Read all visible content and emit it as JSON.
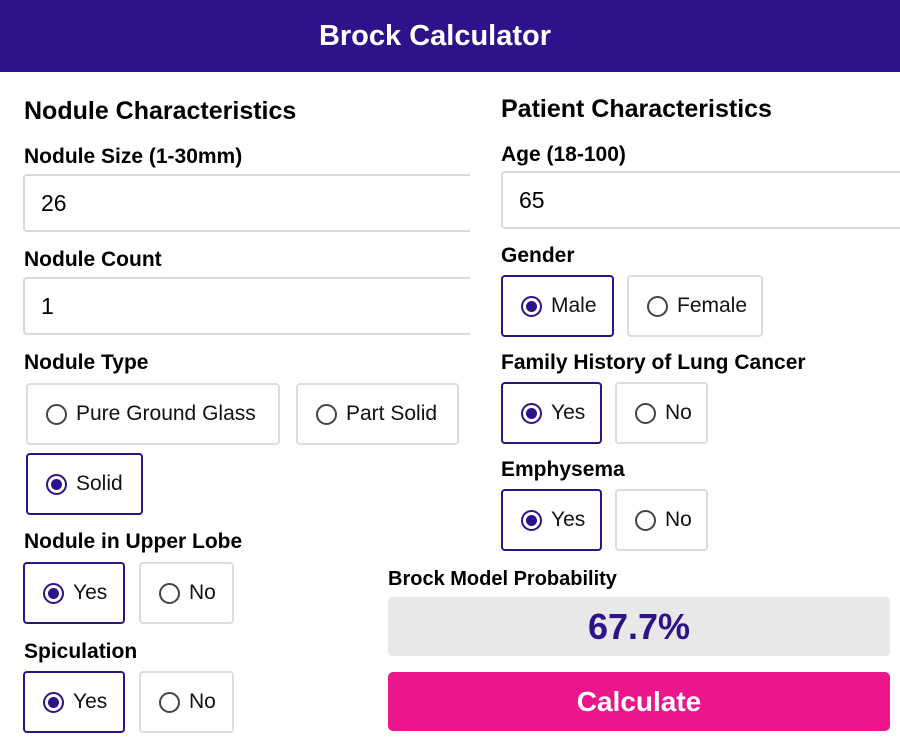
{
  "header": {
    "title": "Brock Calculator"
  },
  "nodule": {
    "section_title": "Nodule Characteristics",
    "size": {
      "label": "Nodule Size (1-30mm)",
      "value": "26"
    },
    "count": {
      "label": "Nodule Count",
      "value": "1"
    },
    "type": {
      "label": "Nodule Type",
      "options": [
        "Pure Ground Glass",
        "Part Solid",
        "Solid"
      ],
      "selected": "Solid"
    },
    "upper_lobe": {
      "label": "Nodule in Upper Lobe",
      "options": [
        "Yes",
        "No"
      ],
      "selected": "Yes"
    },
    "spiculation": {
      "label": "Spiculation",
      "options": [
        "Yes",
        "No"
      ],
      "selected": "Yes"
    }
  },
  "patient": {
    "section_title": "Patient Characteristics",
    "age": {
      "label": "Age (18-100)",
      "value": "65"
    },
    "gender": {
      "label": "Gender",
      "options": [
        "Male",
        "Female"
      ],
      "selected": "Male"
    },
    "family_history": {
      "label": "Family History of Lung Cancer",
      "options": [
        "Yes",
        "No"
      ],
      "selected": "Yes"
    },
    "emphysema": {
      "label": "Emphysema",
      "options": [
        "Yes",
        "No"
      ],
      "selected": "Yes"
    }
  },
  "result": {
    "label": "Brock Model Probability",
    "value": "67.7%"
  },
  "calculate_button": {
    "label": "Calculate"
  },
  "colors": {
    "primary": "#2e1289",
    "accent": "#ec168c",
    "result_bg": "#e8e8e8"
  }
}
